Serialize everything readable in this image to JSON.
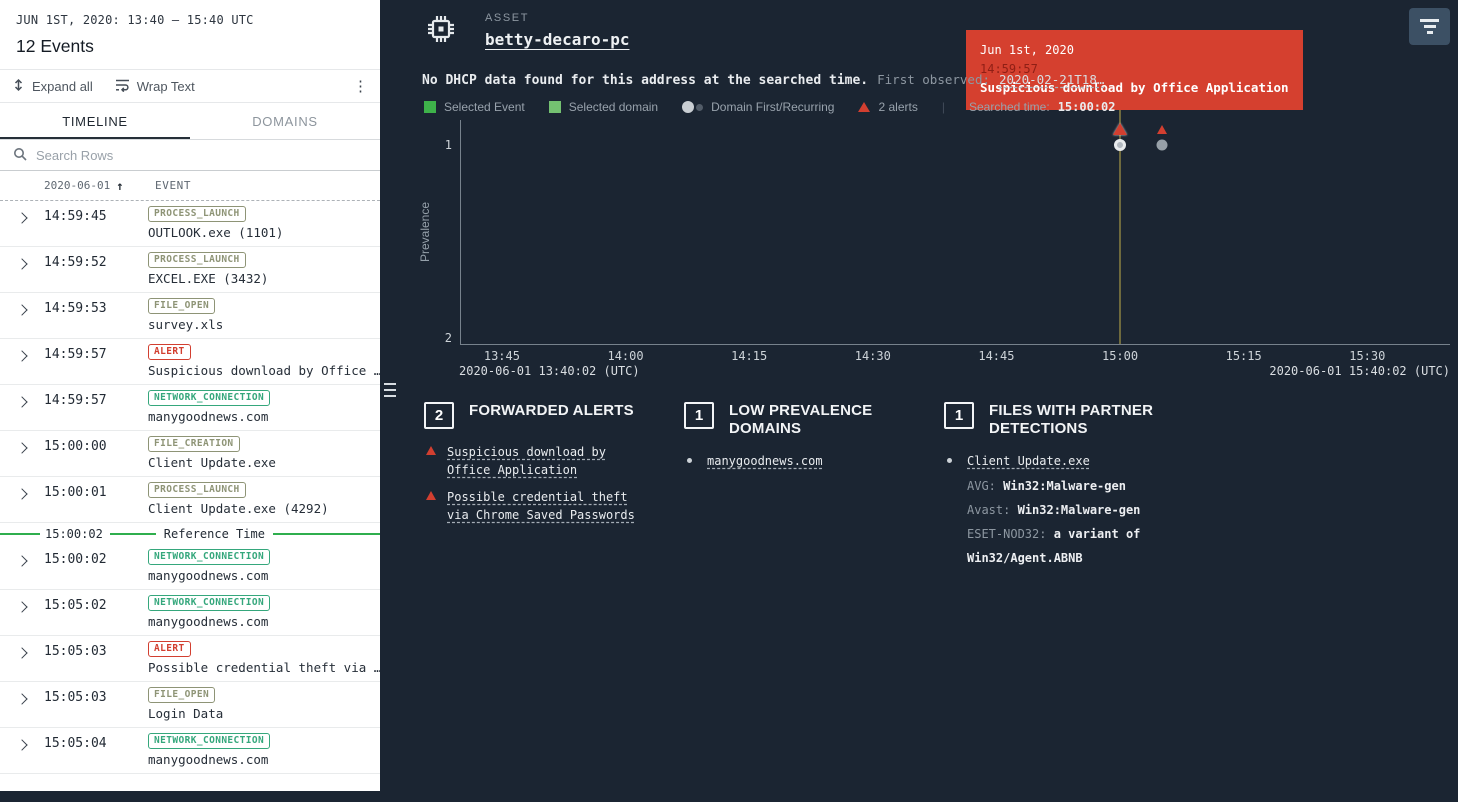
{
  "colors": {
    "background": "#1b2532",
    "panel_bg": "#ffffff",
    "alert_red": "#d23f30",
    "selected_green": "#3eb24a",
    "domain_green": "#74c171",
    "network_teal": "#35a77c",
    "neutral_badge": "#8e9476",
    "reference_green": "#2fae4d",
    "searched_line": "#6e6a3e",
    "tooltip_bg": "#d5402f"
  },
  "timeline_panel": {
    "date_range": "JUN 1ST, 2020: 13:40 – 15:40 UTC",
    "events_count": "12 Events",
    "toolbar": {
      "expand_all": "Expand all",
      "wrap_text": "Wrap Text"
    },
    "tabs": [
      {
        "label": "TIMELINE"
      },
      {
        "label": "DOMAINS"
      }
    ],
    "search_placeholder": "Search Rows",
    "columns": {
      "date": "2020-06-01",
      "sort": "↑",
      "event": "EVENT"
    },
    "reference_index": 7,
    "reference_row": {
      "time": "15:00:02",
      "label": "Reference Time"
    },
    "events": [
      {
        "time": "14:59:45",
        "badge": "PROCESS_LAUNCH",
        "badge_type": "process",
        "text": "OUTLOOK.exe (1101)"
      },
      {
        "time": "14:59:52",
        "badge": "PROCESS_LAUNCH",
        "badge_type": "process",
        "text": "EXCEL.EXE (3432)"
      },
      {
        "time": "14:59:53",
        "badge": "FILE_OPEN",
        "badge_type": "file",
        "text": "survey.xls"
      },
      {
        "time": "14:59:57",
        "badge": "ALERT",
        "badge_type": "alert",
        "text": "Suspicious download by Office …"
      },
      {
        "time": "14:59:57",
        "badge": "NETWORK_CONNECTION",
        "badge_type": "network",
        "text": "manygoodnews.com"
      },
      {
        "time": "15:00:00",
        "badge": "FILE_CREATION",
        "badge_type": "file",
        "text": "Client Update.exe"
      },
      {
        "time": "15:00:01",
        "badge": "PROCESS_LAUNCH",
        "badge_type": "process",
        "text": "Client Update.exe (4292)"
      },
      {
        "time": "15:00:02",
        "badge": "NETWORK_CONNECTION",
        "badge_type": "network",
        "text": "manygoodnews.com"
      },
      {
        "time": "15:05:02",
        "badge": "NETWORK_CONNECTION",
        "badge_type": "network",
        "text": "manygoodnews.com"
      },
      {
        "time": "15:05:03",
        "badge": "ALERT",
        "badge_type": "alert",
        "text": "Possible credential theft via …"
      },
      {
        "time": "15:05:03",
        "badge": "FILE_OPEN",
        "badge_type": "file",
        "text": "Login Data"
      },
      {
        "time": "15:05:04",
        "badge": "NETWORK_CONNECTION",
        "badge_type": "network",
        "text": "manygoodnews.com"
      }
    ]
  },
  "main": {
    "asset_label": "ASSET",
    "asset_name": "betty-decaro-pc",
    "dhcp_notice": "No DHCP data found for this address at the searched time.",
    "first_observed_label": "First observed:",
    "first_observed_value": "2020-02-21T18…",
    "legend": [
      {
        "type": "square-green",
        "label": "Selected Event"
      },
      {
        "type": "square-lightgreen",
        "label": "Selected domain"
      },
      {
        "type": "circles",
        "label": "Domain First/Recurring"
      },
      {
        "type": "triangle",
        "label": "2 alerts"
      },
      {
        "type": "searched",
        "label": "Searched time:",
        "value": "15:00:02",
        "separator_before": true
      }
    ],
    "tooltip": {
      "date": "Jun 1st, 2020",
      "time": "14:59:57",
      "text": "Suspicious download by Office Application"
    }
  },
  "chart_data": {
    "type": "scatter",
    "ylabel": "Prevalence",
    "y_ticks": [
      1,
      2
    ],
    "ylim": [
      0.87,
      2.03
    ],
    "x_start": "13:40:02",
    "x_end": "15:40:02",
    "x_ticks": [
      "13:45",
      "14:00",
      "14:15",
      "14:30",
      "14:45",
      "15:00",
      "15:15",
      "15:30"
    ],
    "x_axis_left_label": "2020-06-01 13:40:02 (UTC)",
    "x_axis_right_label": "2020-06-01 15:40:02 (UTC)",
    "searched_time": "15:00:02",
    "grid": false,
    "legend_position": "top",
    "points": [
      {
        "time": "15:00:02",
        "prevalence": 1,
        "kind": "selected",
        "alert": true
      },
      {
        "time": "15:05:02",
        "prevalence": 1,
        "kind": "recurring",
        "alert": true
      }
    ]
  },
  "panels": [
    {
      "count": "2",
      "title": "FORWARDED ALERTS",
      "items": [
        {
          "bullet": "alert",
          "text": "Suspicious download by Office Application"
        },
        {
          "bullet": "alert",
          "text": "Possible credential theft via Chrome Saved Passwords"
        }
      ]
    },
    {
      "count": "1",
      "title": "LOW PREVALENCE DOMAINS",
      "items": [
        {
          "bullet": "dot",
          "text": "manygoodnews.com"
        }
      ]
    },
    {
      "count": "1",
      "title": "FILES WITH PARTNER DETECTIONS",
      "items": [
        {
          "bullet": "dot",
          "text": "Client Update.exe",
          "details": [
            {
              "label": "AVG:",
              "value": "Win32:Malware-gen"
            },
            {
              "label": "Avast:",
              "value": "Win32:Malware-gen"
            },
            {
              "label": "ESET-NOD32:",
              "value": "a variant of Win32/Agent.ABNB"
            }
          ]
        }
      ]
    }
  ]
}
